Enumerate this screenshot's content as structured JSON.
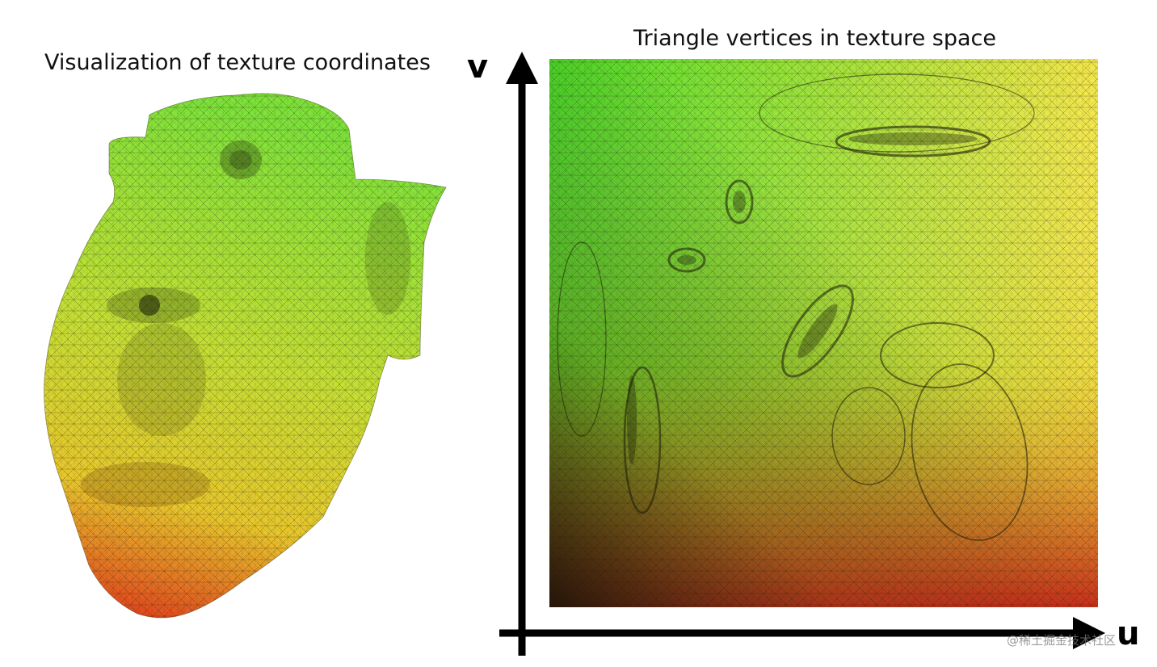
{
  "left_panel": {
    "title": "Visualization of texture coordinates"
  },
  "right_panel": {
    "title": "Triangle vertices in texture space",
    "v_axis_label": "v",
    "u_axis_label": "u"
  },
  "watermark": "@稀土掘金技术社区",
  "colors": {
    "uv_green": "#4fe02a",
    "uv_yellow": "#f2e640",
    "uv_red": "#e8321a",
    "uv_dark": "#1a1a0a",
    "axis": "#000000"
  }
}
